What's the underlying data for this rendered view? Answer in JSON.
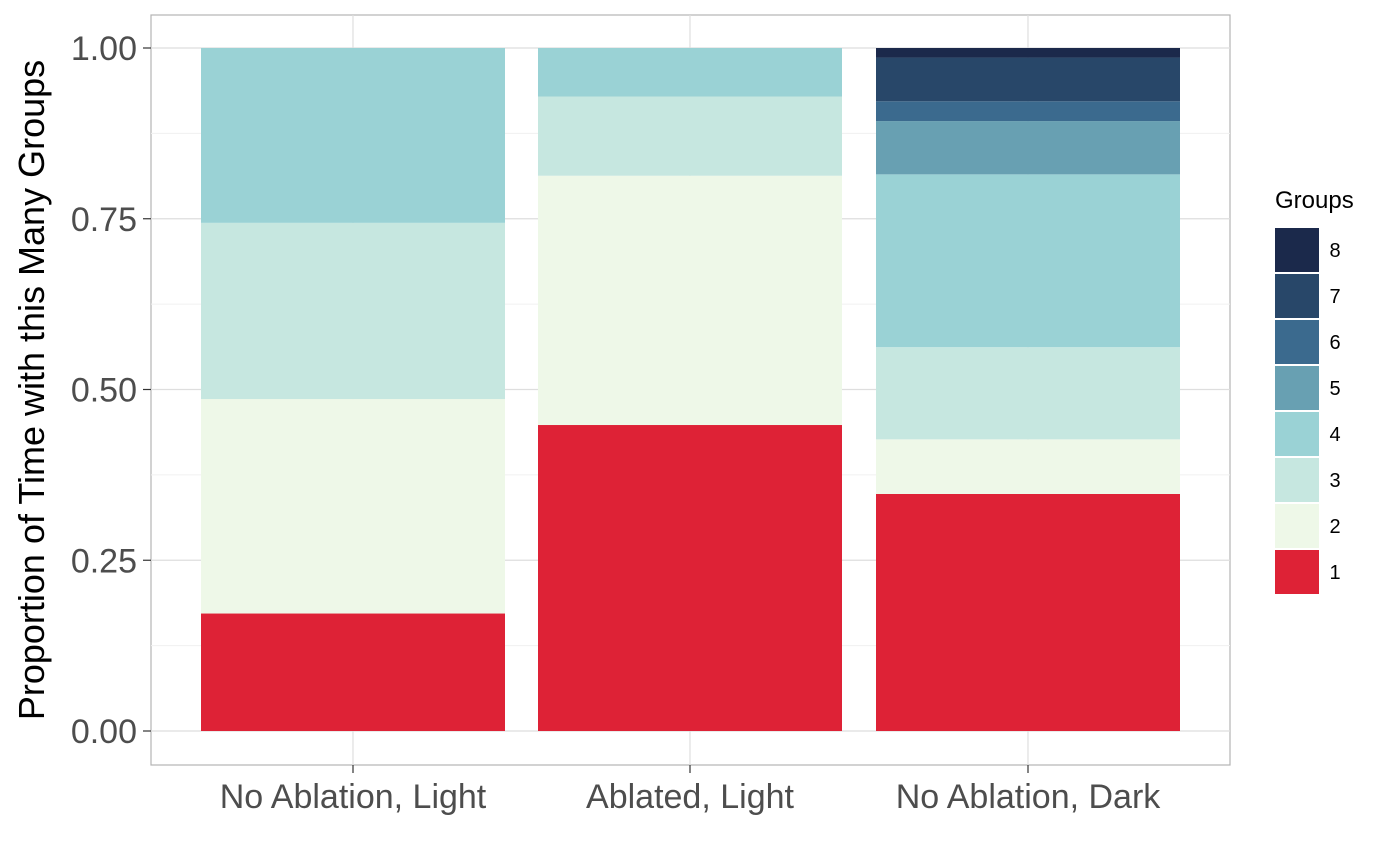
{
  "chart_data": {
    "type": "bar",
    "stacked": true,
    "normalized": true,
    "title": "",
    "xlabel": "",
    "ylabel": "Proportion of Time with this Many Groups",
    "ylim": [
      0,
      1
    ],
    "yticks": [
      "0.00",
      "0.25",
      "0.50",
      "0.75",
      "1.00"
    ],
    "ytick_values": [
      0,
      0.25,
      0.5,
      0.75,
      1.0
    ],
    "grid": true,
    "categories": [
      "No Ablation, Light",
      "Ablated, Light",
      "No Ablation, Dark"
    ],
    "legend": {
      "title": "Groups",
      "position": "right"
    },
    "series": [
      {
        "name": "1",
        "color": "#DE2236",
        "values": [
          0.172,
          0.448,
          0.347
        ]
      },
      {
        "name": "2",
        "color": "#EEF8E8",
        "values": [
          0.314,
          0.365,
          0.08
        ]
      },
      {
        "name": "3",
        "color": "#C6E7E0",
        "values": [
          0.258,
          0.116,
          0.135
        ]
      },
      {
        "name": "4",
        "color": "#9AD2D5",
        "values": [
          0.256,
          0.071,
          0.253
        ]
      },
      {
        "name": "5",
        "color": "#68A0B2",
        "values": [
          0,
          0,
          0.078
        ]
      },
      {
        "name": "6",
        "color": "#3B6A8E",
        "values": [
          0,
          0,
          0.029
        ]
      },
      {
        "name": "7",
        "color": "#284769",
        "values": [
          0,
          0,
          0.064
        ]
      },
      {
        "name": "8",
        "color": "#1B294B",
        "values": [
          0,
          0,
          0.014
        ]
      }
    ]
  }
}
